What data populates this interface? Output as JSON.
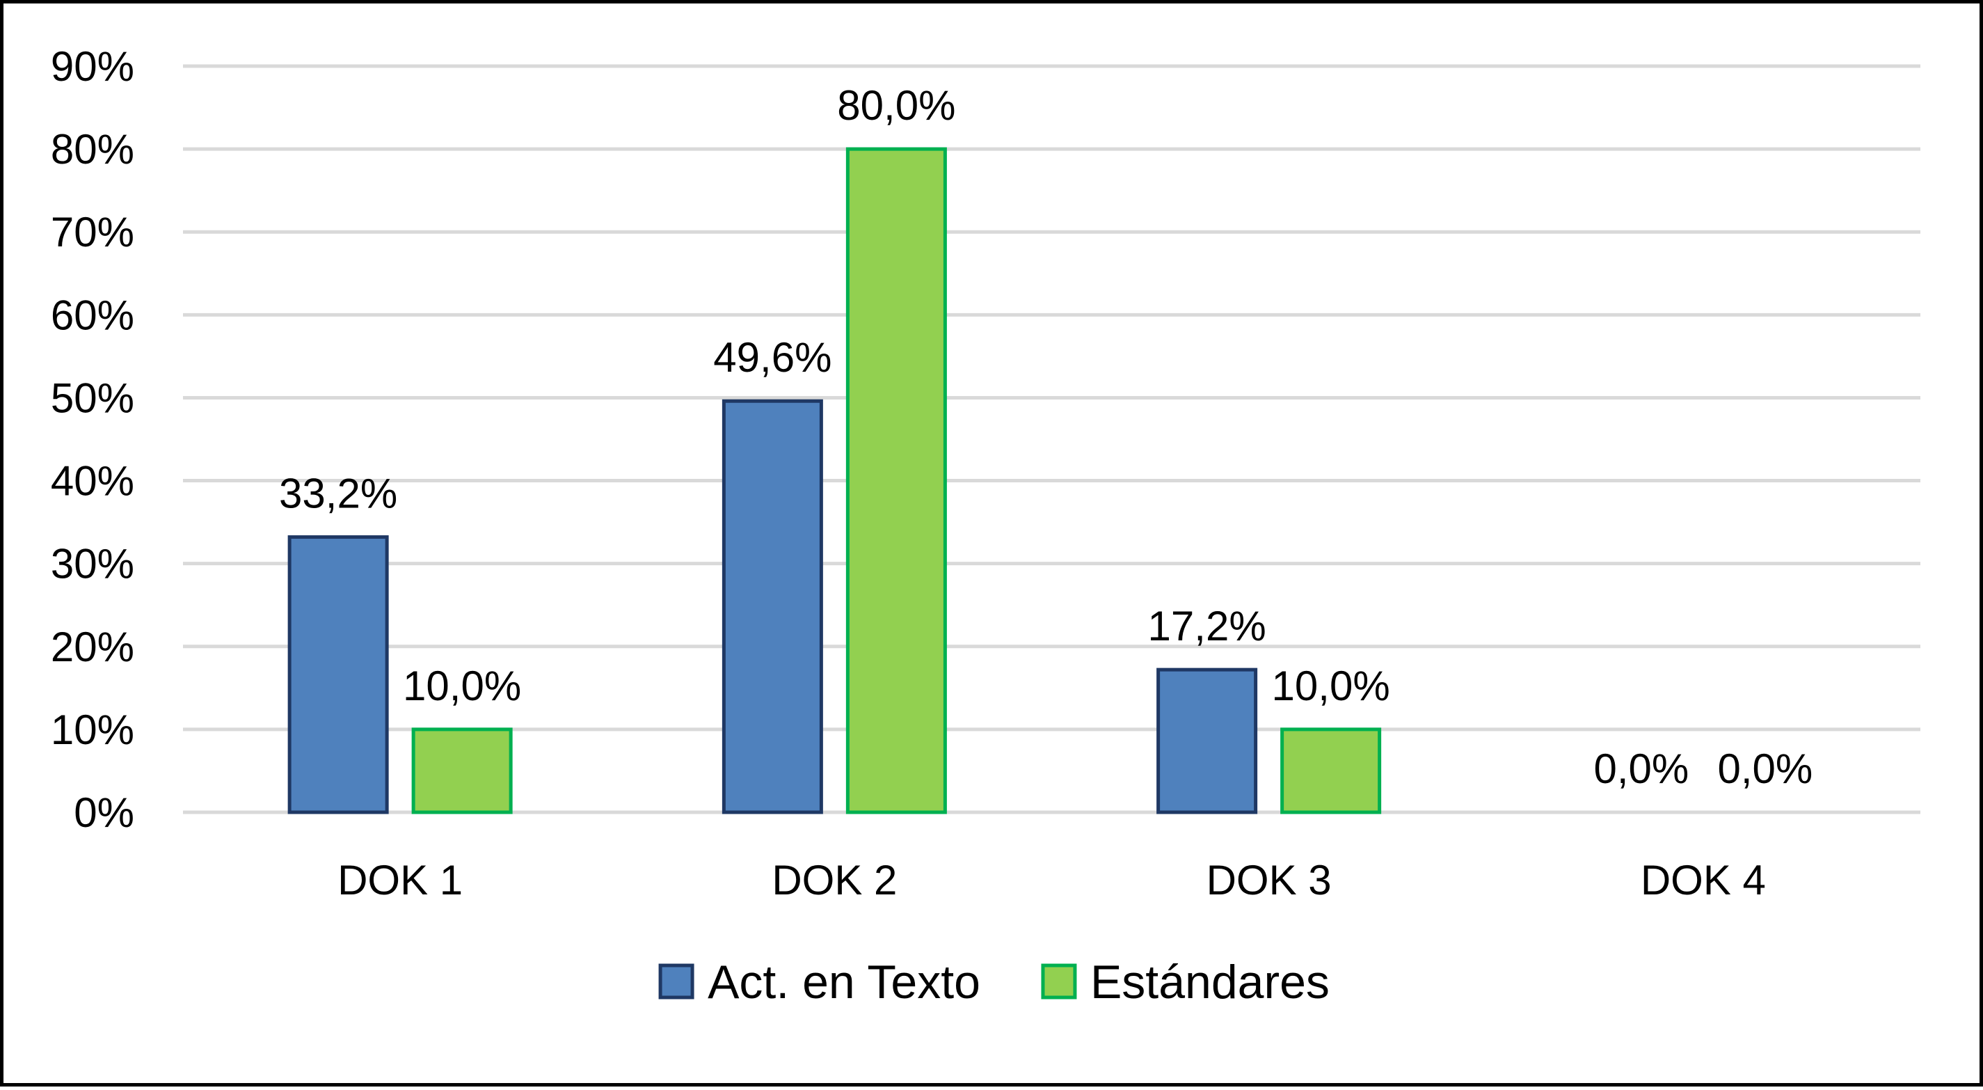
{
  "chart_data": {
    "type": "bar",
    "categories": [
      "DOK 1",
      "DOK 2",
      "DOK 3",
      "DOK 4"
    ],
    "series": [
      {
        "name": "Act. en Texto",
        "values": [
          33.2,
          49.6,
          17.2,
          0.0
        ],
        "labels": [
          "33,2%",
          "49,6%",
          "17,2%",
          "0,0%"
        ],
        "fill": "#4F81BD",
        "stroke": "#1F3864"
      },
      {
        "name": "Estándares",
        "values": [
          10.0,
          80.0,
          10.0,
          0.0
        ],
        "labels": [
          "10,0%",
          "80,0%",
          "10,0%",
          "0,0%"
        ],
        "fill": "#92D050",
        "stroke": "#00B050"
      }
    ],
    "yticks": [
      "0%",
      "10%",
      "20%",
      "30%",
      "40%",
      "50%",
      "60%",
      "70%",
      "80%",
      "90%"
    ],
    "ylim": [
      0,
      90
    ],
    "grid": true,
    "gridColor": "#D9D9D9",
    "legend": "bottom-center",
    "title": "",
    "xlabel": "",
    "ylabel": ""
  }
}
